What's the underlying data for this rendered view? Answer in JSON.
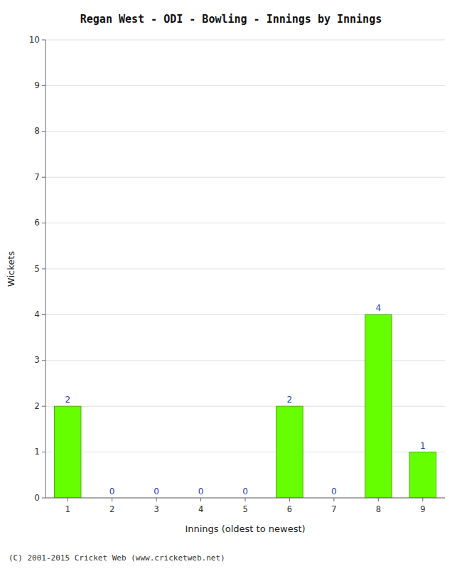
{
  "chart_data": {
    "type": "bar",
    "title": "Regan West - ODI - Bowling - Innings by Innings",
    "xlabel": "Innings (oldest to newest)",
    "ylabel": "Wickets",
    "categories": [
      1,
      2,
      3,
      4,
      5,
      6,
      7,
      8,
      9
    ],
    "values": [
      2,
      0,
      0,
      0,
      0,
      2,
      0,
      4,
      1
    ],
    "color": "#66ff00",
    "ylim": [
      0,
      10
    ],
    "yticks": [
      0,
      1,
      2,
      3,
      4,
      5,
      6,
      7,
      8,
      9,
      10
    ],
    "grid": true,
    "data_labels": true,
    "annotations": [
      "(C) 2001-2015 Cricket Web (www.cricketweb.net)"
    ]
  }
}
